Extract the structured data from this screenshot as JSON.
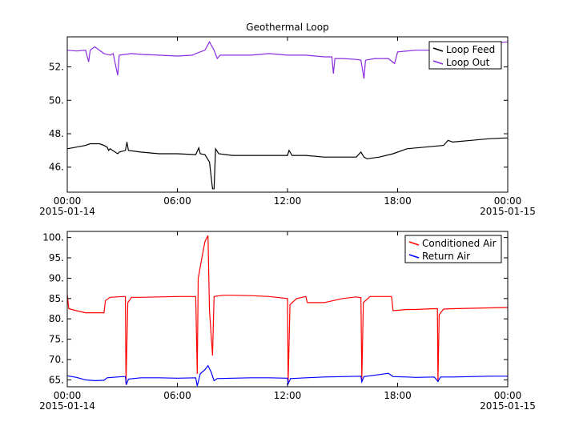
{
  "chart_data": [
    {
      "type": "line",
      "title": "Geothermal Loop",
      "xlabel": "",
      "ylabel": "",
      "xlim": [
        "2015-01-14 00:00",
        "2015-01-15 00:00"
      ],
      "ylim": [
        44.5,
        53.8
      ],
      "yticks": [
        {
          "value": 46,
          "label": "46."
        },
        {
          "value": 48,
          "label": "48."
        },
        {
          "value": 50,
          "label": "50."
        },
        {
          "value": 52,
          "label": "52."
        }
      ],
      "xticks": [
        {
          "value": "2015-01-14 00:00",
          "label": "00:00",
          "sublabel": "2015-01-14"
        },
        {
          "value": "2015-01-14 06:00",
          "label": "06:00",
          "sublabel": ""
        },
        {
          "value": "2015-01-14 12:00",
          "label": "12:00",
          "sublabel": ""
        },
        {
          "value": "2015-01-14 18:00",
          "label": "18:00",
          "sublabel": ""
        },
        {
          "value": "2015-01-15 00:00",
          "label": "00:00",
          "sublabel": "2015-01-15"
        }
      ],
      "grid": false,
      "legend_position": "top-right",
      "series": [
        {
          "name": "Loop Feed",
          "color": "#000000",
          "points": [
            [
              "2015-01-14 00:00",
              47.1
            ],
            [
              "2015-01-14 00:30",
              47.2
            ],
            [
              "2015-01-14 01:00",
              47.3
            ],
            [
              "2015-01-14 01:15",
              47.4
            ],
            [
              "2015-01-14 01:45",
              47.4
            ],
            [
              "2015-01-14 02:00",
              47.3
            ],
            [
              "2015-01-14 02:10",
              47.2
            ],
            [
              "2015-01-14 02:15",
              47.0
            ],
            [
              "2015-01-14 02:20",
              47.1
            ],
            [
              "2015-01-14 02:45",
              46.8
            ],
            [
              "2015-01-14 02:50",
              46.9
            ],
            [
              "2015-01-14 03:10",
              47.0
            ],
            [
              "2015-01-14 03:15",
              47.5
            ],
            [
              "2015-01-14 03:20",
              47.0
            ],
            [
              "2015-01-14 04:00",
              46.9
            ],
            [
              "2015-01-14 05:00",
              46.8
            ],
            [
              "2015-01-14 06:00",
              46.8
            ],
            [
              "2015-01-14 07:00",
              46.75
            ],
            [
              "2015-01-14 07:10",
              47.15
            ],
            [
              "2015-01-14 07:15",
              46.8
            ],
            [
              "2015-01-14 07:30",
              46.75
            ],
            [
              "2015-01-14 07:45",
              46.3
            ],
            [
              "2015-01-14 07:55",
              44.7
            ],
            [
              "2015-01-14 08:00",
              44.7
            ],
            [
              "2015-01-14 08:05",
              47.1
            ],
            [
              "2015-01-14 08:15",
              46.8
            ],
            [
              "2015-01-14 09:00",
              46.7
            ],
            [
              "2015-01-14 10:00",
              46.7
            ],
            [
              "2015-01-14 11:00",
              46.7
            ],
            [
              "2015-01-14 12:00",
              46.7
            ],
            [
              "2015-01-14 12:05",
              47.0
            ],
            [
              "2015-01-14 12:15",
              46.7
            ],
            [
              "2015-01-14 13:00",
              46.7
            ],
            [
              "2015-01-14 14:00",
              46.6
            ],
            [
              "2015-01-14 15:00",
              46.6
            ],
            [
              "2015-01-14 15:45",
              46.6
            ],
            [
              "2015-01-14 16:00",
              46.9
            ],
            [
              "2015-01-14 16:10",
              46.6
            ],
            [
              "2015-01-14 16:20",
              46.5
            ],
            [
              "2015-01-14 17:00",
              46.6
            ],
            [
              "2015-01-14 17:45",
              46.8
            ],
            [
              "2015-01-14 18:30",
              47.1
            ],
            [
              "2015-01-14 19:30",
              47.2
            ],
            [
              "2015-01-14 20:30",
              47.3
            ],
            [
              "2015-01-14 20:45",
              47.6
            ],
            [
              "2015-01-14 21:00",
              47.5
            ],
            [
              "2015-01-14 22:00",
              47.6
            ],
            [
              "2015-01-14 23:00",
              47.7
            ],
            [
              "2015-01-15 00:00",
              47.75
            ]
          ]
        },
        {
          "name": "Loop Out",
          "color": "#8a2be2",
          "points": [
            [
              "2015-01-14 00:00",
              53.0
            ],
            [
              "2015-01-14 00:30",
              52.95
            ],
            [
              "2015-01-14 01:00",
              53.0
            ],
            [
              "2015-01-14 01:10",
              52.3
            ],
            [
              "2015-01-14 01:15",
              53.0
            ],
            [
              "2015-01-14 01:30",
              53.2
            ],
            [
              "2015-01-14 02:00",
              52.8
            ],
            [
              "2015-01-14 02:20",
              52.7
            ],
            [
              "2015-01-14 02:30",
              52.8
            ],
            [
              "2015-01-14 02:45",
              51.5
            ],
            [
              "2015-01-14 02:50",
              52.7
            ],
            [
              "2015-01-14 03:30",
              52.8
            ],
            [
              "2015-01-14 04:00",
              52.75
            ],
            [
              "2015-01-14 05:00",
              52.7
            ],
            [
              "2015-01-14 06:00",
              52.65
            ],
            [
              "2015-01-14 06:50",
              52.7
            ],
            [
              "2015-01-14 07:00",
              52.8
            ],
            [
              "2015-01-14 07:30",
              53.0
            ],
            [
              "2015-01-14 07:45",
              53.5
            ],
            [
              "2015-01-14 08:00",
              53.0
            ],
            [
              "2015-01-14 08:10",
              52.5
            ],
            [
              "2015-01-14 08:20",
              52.7
            ],
            [
              "2015-01-14 09:00",
              52.7
            ],
            [
              "2015-01-14 10:00",
              52.7
            ],
            [
              "2015-01-14 11:00",
              52.8
            ],
            [
              "2015-01-14 12:00",
              52.7
            ],
            [
              "2015-01-14 13:00",
              52.7
            ],
            [
              "2015-01-14 14:00",
              52.6
            ],
            [
              "2015-01-14 14:25",
              52.6
            ],
            [
              "2015-01-14 14:30",
              51.6
            ],
            [
              "2015-01-14 14:35",
              52.5
            ],
            [
              "2015-01-14 15:00",
              52.5
            ],
            [
              "2015-01-14 15:45",
              52.45
            ],
            [
              "2015-01-14 16:00",
              52.4
            ],
            [
              "2015-01-14 16:10",
              51.3
            ],
            [
              "2015-01-14 16:15",
              52.4
            ],
            [
              "2015-01-14 16:45",
              52.5
            ],
            [
              "2015-01-14 17:30",
              52.5
            ],
            [
              "2015-01-14 17:50",
              52.2
            ],
            [
              "2015-01-14 18:00",
              52.9
            ],
            [
              "2015-01-14 19:00",
              53.0
            ],
            [
              "2015-01-14 20:00",
              53.0
            ],
            [
              "2015-01-14 21:00",
              53.2
            ],
            [
              "2015-01-14 22:00",
              53.3
            ],
            [
              "2015-01-14 23:00",
              53.4
            ],
            [
              "2015-01-15 00:00",
              53.5
            ]
          ]
        }
      ]
    },
    {
      "type": "line",
      "title": "",
      "xlabel": "",
      "ylabel": "",
      "xlim": [
        "2015-01-14 00:00",
        "2015-01-15 00:00"
      ],
      "ylim": [
        63.3,
        101.5
      ],
      "yticks": [
        {
          "value": 65,
          "label": "65."
        },
        {
          "value": 70,
          "label": "70."
        },
        {
          "value": 75,
          "label": "75."
        },
        {
          "value": 80,
          "label": "80."
        },
        {
          "value": 85,
          "label": "85."
        },
        {
          "value": 90,
          "label": "90."
        },
        {
          "value": 95,
          "label": "95."
        },
        {
          "value": 100,
          "label": "100."
        }
      ],
      "xticks": [
        {
          "value": "2015-01-14 00:00",
          "label": "00:00",
          "sublabel": "2015-01-14"
        },
        {
          "value": "2015-01-14 06:00",
          "label": "06:00",
          "sublabel": ""
        },
        {
          "value": "2015-01-14 12:00",
          "label": "12:00",
          "sublabel": ""
        },
        {
          "value": "2015-01-14 18:00",
          "label": "18:00",
          "sublabel": ""
        },
        {
          "value": "2015-01-15 00:00",
          "label": "00:00",
          "sublabel": "2015-01-15"
        }
      ],
      "grid": false,
      "legend_position": "top-right",
      "series": [
        {
          "name": "Conditioned Air",
          "color": "#ff0000",
          "points": [
            [
              "2015-01-14 00:00",
              86.0
            ],
            [
              "2015-01-14 00:05",
              82.5
            ],
            [
              "2015-01-14 00:30",
              82.0
            ],
            [
              "2015-01-14 01:00",
              81.5
            ],
            [
              "2015-01-14 02:00",
              81.5
            ],
            [
              "2015-01-14 02:05",
              84.5
            ],
            [
              "2015-01-14 02:20",
              85.3
            ],
            [
              "2015-01-14 03:00",
              85.5
            ],
            [
              "2015-01-14 03:10",
              85.5
            ],
            [
              "2015-01-14 03:12",
              64.0
            ],
            [
              "2015-01-14 03:18",
              84.0
            ],
            [
              "2015-01-14 03:30",
              85.3
            ],
            [
              "2015-01-14 04:00",
              85.3
            ],
            [
              "2015-01-14 05:00",
              85.4
            ],
            [
              "2015-01-14 06:00",
              85.5
            ],
            [
              "2015-01-14 07:00",
              85.5
            ],
            [
              "2015-01-14 07:05",
              66.5
            ],
            [
              "2015-01-14 07:08",
              90.0
            ],
            [
              "2015-01-14 07:20",
              95.0
            ],
            [
              "2015-01-14 07:30",
              99.0
            ],
            [
              "2015-01-14 07:40",
              100.5
            ],
            [
              "2015-01-14 07:45",
              82.0
            ],
            [
              "2015-01-14 07:55",
              71.0
            ],
            [
              "2015-01-14 08:00",
              85.5
            ],
            [
              "2015-01-14 08:30",
              85.8
            ],
            [
              "2015-01-14 09:00",
              85.8
            ],
            [
              "2015-01-14 10:00",
              85.7
            ],
            [
              "2015-01-14 11:00",
              85.5
            ],
            [
              "2015-01-14 12:00",
              85.0
            ],
            [
              "2015-01-14 12:02",
              64.5
            ],
            [
              "2015-01-14 12:08",
              83.5
            ],
            [
              "2015-01-14 12:30",
              85.0
            ],
            [
              "2015-01-14 13:00",
              85.5
            ],
            [
              "2015-01-14 13:05",
              84.0
            ],
            [
              "2015-01-14 14:00",
              84.0
            ],
            [
              "2015-01-14 15:00",
              85.0
            ],
            [
              "2015-01-14 15:45",
              85.4
            ],
            [
              "2015-01-14 16:00",
              85.2
            ],
            [
              "2015-01-14 16:03",
              65.0
            ],
            [
              "2015-01-14 16:08",
              84.0
            ],
            [
              "2015-01-14 16:30",
              85.5
            ],
            [
              "2015-01-14 17:00",
              85.5
            ],
            [
              "2015-01-14 17:40",
              85.5
            ],
            [
              "2015-01-14 17:45",
              82.0
            ],
            [
              "2015-01-14 18:30",
              82.3
            ],
            [
              "2015-01-14 19:00",
              82.3
            ],
            [
              "2015-01-14 20:00",
              82.5
            ],
            [
              "2015-01-14 20:10",
              82.5
            ],
            [
              "2015-01-14 20:12",
              64.5
            ],
            [
              "2015-01-14 20:16",
              81.0
            ],
            [
              "2015-01-14 20:30",
              82.4
            ],
            [
              "2015-01-14 21:00",
              82.5
            ],
            [
              "2015-01-14 22:00",
              82.6
            ],
            [
              "2015-01-14 23:00",
              82.7
            ],
            [
              "2015-01-15 00:00",
              82.8
            ]
          ]
        },
        {
          "name": "Return Air",
          "color": "#0000ff",
          "points": [
            [
              "2015-01-14 00:00",
              66.0
            ],
            [
              "2015-01-14 00:30",
              65.6
            ],
            [
              "2015-01-14 01:00",
              65.0
            ],
            [
              "2015-01-14 01:30",
              64.8
            ],
            [
              "2015-01-14 02:00",
              64.9
            ],
            [
              "2015-01-14 02:10",
              65.5
            ],
            [
              "2015-01-14 03:00",
              65.8
            ],
            [
              "2015-01-14 03:10",
              65.8
            ],
            [
              "2015-01-14 03:13",
              63.8
            ],
            [
              "2015-01-14 03:20",
              65.2
            ],
            [
              "2015-01-14 04:00",
              65.5
            ],
            [
              "2015-01-14 05:00",
              65.5
            ],
            [
              "2015-01-14 06:00",
              65.4
            ],
            [
              "2015-01-14 07:00",
              65.5
            ],
            [
              "2015-01-14 07:05",
              63.5
            ],
            [
              "2015-01-14 07:15",
              66.5
            ],
            [
              "2015-01-14 07:30",
              67.5
            ],
            [
              "2015-01-14 07:40",
              68.5
            ],
            [
              "2015-01-14 07:50",
              67.0
            ],
            [
              "2015-01-14 08:00",
              64.8
            ],
            [
              "2015-01-14 08:10",
              65.3
            ],
            [
              "2015-01-14 09:00",
              65.4
            ],
            [
              "2015-01-14 10:00",
              65.5
            ],
            [
              "2015-01-14 11:00",
              65.5
            ],
            [
              "2015-01-14 12:00",
              65.4
            ],
            [
              "2015-01-14 12:02",
              64.0
            ],
            [
              "2015-01-14 12:10",
              65.3
            ],
            [
              "2015-01-14 13:00",
              65.5
            ],
            [
              "2015-01-14 14:00",
              65.7
            ],
            [
              "2015-01-14 15:00",
              65.8
            ],
            [
              "2015-01-14 16:00",
              65.9
            ],
            [
              "2015-01-14 16:03",
              64.5
            ],
            [
              "2015-01-14 16:10",
              65.8
            ],
            [
              "2015-01-14 17:00",
              66.3
            ],
            [
              "2015-01-14 17:30",
              66.6
            ],
            [
              "2015-01-14 17:45",
              65.8
            ],
            [
              "2015-01-14 18:30",
              65.7
            ],
            [
              "2015-01-14 19:00",
              65.6
            ],
            [
              "2015-01-14 20:00",
              65.7
            ],
            [
              "2015-01-14 20:12",
              64.6
            ],
            [
              "2015-01-14 20:20",
              65.7
            ],
            [
              "2015-01-14 21:00",
              65.7
            ],
            [
              "2015-01-14 22:00",
              65.8
            ],
            [
              "2015-01-14 23:00",
              65.9
            ],
            [
              "2015-01-15 00:00",
              65.9
            ]
          ]
        }
      ]
    }
  ]
}
